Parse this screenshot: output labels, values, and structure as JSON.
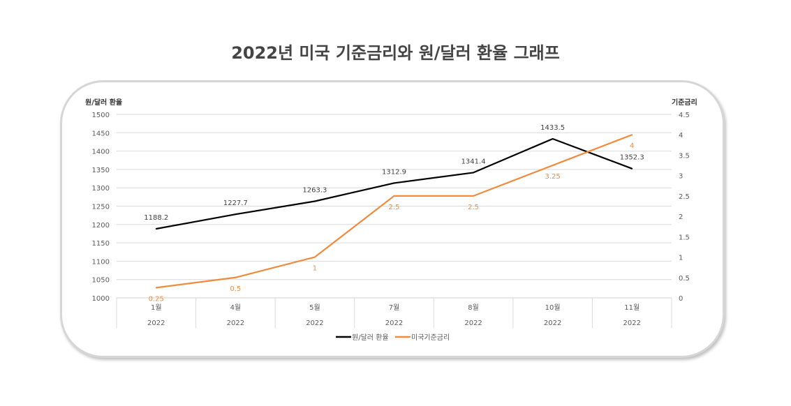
{
  "chart_data": {
    "type": "line",
    "title": "2022년 미국 기준금리와 원/달러 환율 그래프",
    "categories": [
      {
        "month": "1월",
        "year": "2022"
      },
      {
        "month": "4월",
        "year": "2022"
      },
      {
        "month": "5월",
        "year": "2022"
      },
      {
        "month": "7월",
        "year": "2022"
      },
      {
        "month": "8월",
        "year": "2022"
      },
      {
        "month": "10월",
        "year": "2022"
      },
      {
        "month": "11월",
        "year": "2022"
      }
    ],
    "y_left": {
      "label": "원/달러 환율",
      "range": [
        1000,
        1500
      ],
      "step": 50,
      "ticks": [
        "1000",
        "1050",
        "1100",
        "1150",
        "1200",
        "1250",
        "1300",
        "1350",
        "1400",
        "1450",
        "1500"
      ]
    },
    "y_right": {
      "label": "기준금리",
      "range": [
        0,
        4.5
      ],
      "step": 0.5,
      "ticks": [
        "0",
        "0.5",
        "1",
        "1.5",
        "2",
        "2.5",
        "3",
        "3.5",
        "4",
        "4.5"
      ]
    },
    "grid": true,
    "legend_position": "bottom",
    "series": [
      {
        "name": "원/달러 환율",
        "axis": "left",
        "color": "#000000",
        "values": [
          1188.2,
          1227.7,
          1263.3,
          1312.9,
          1341.4,
          1433.5,
          1352.3
        ],
        "labels": [
          "1188.2",
          "1227.7",
          "1263.3",
          "1312.9",
          "1341.4",
          "1433.5",
          "1352.3"
        ]
      },
      {
        "name": "미국기준금리",
        "axis": "right",
        "color": "#f08a3c",
        "values": [
          0.25,
          0.5,
          1,
          2.5,
          2.5,
          3.25,
          4
        ],
        "labels": [
          "0.25",
          "0.5",
          "1",
          "2.5",
          "2.5",
          "3.25",
          "4"
        ]
      }
    ]
  }
}
